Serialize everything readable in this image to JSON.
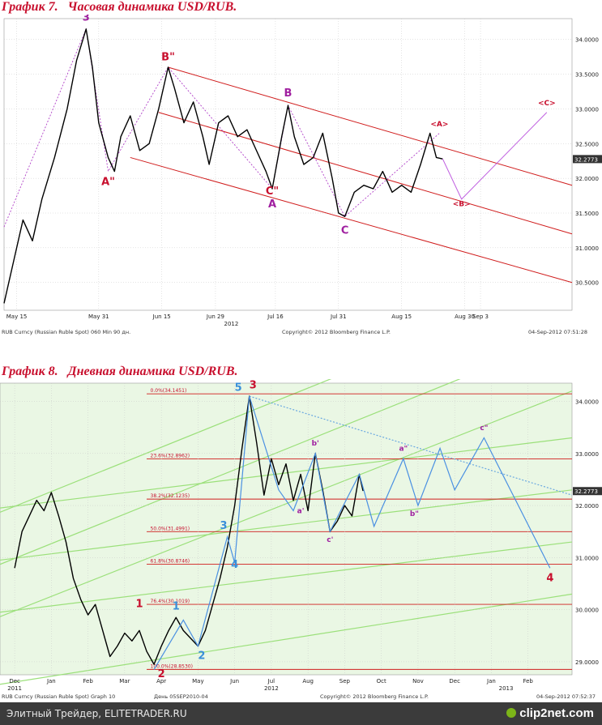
{
  "chart_data": [
    {
      "type": "line",
      "title": "График 7.   Часовая динамика USD/RUB.",
      "ylim": [
        30.1,
        34.3
      ],
      "x_ticks": [
        "May 15",
        "May 31",
        "Jun 15",
        "Jun 29",
        "Jul 16",
        "Jul 31",
        "Aug 15",
        "Aug 30",
        "Sep 3"
      ],
      "x_year": "2012",
      "y_ticks": [
        "34.0000",
        "33.5000",
        "33.0000",
        "32.5000",
        "32.0000",
        "31.5000",
        "31.0000",
        "30.5000"
      ],
      "last_price": "32.2773",
      "footer_left": "RUB Curncy (Russian Ruble Spot) 060 Min 90 дн.",
      "footer_center": "Copyright© 2012 Bloomberg Finance L.P.",
      "footer_right": "04-Sep-2012 07:51:28",
      "price_path": [
        {
          "x": 0.0,
          "y": 30.2
        },
        {
          "x": 1.5,
          "y": 30.8
        },
        {
          "x": 3.0,
          "y": 31.4
        },
        {
          "x": 4.5,
          "y": 31.1
        },
        {
          "x": 6.0,
          "y": 31.7
        },
        {
          "x": 8.0,
          "y": 32.3
        },
        {
          "x": 10.0,
          "y": 33.0
        },
        {
          "x": 11.5,
          "y": 33.7
        },
        {
          "x": 13.0,
          "y": 34.15
        },
        {
          "x": 14.0,
          "y": 33.6
        },
        {
          "x": 15.0,
          "y": 32.8
        },
        {
          "x": 16.5,
          "y": 32.3
        },
        {
          "x": 17.5,
          "y": 32.1
        },
        {
          "x": 18.5,
          "y": 32.6
        },
        {
          "x": 20.0,
          "y": 32.9
        },
        {
          "x": 21.5,
          "y": 32.4
        },
        {
          "x": 23.0,
          "y": 32.5
        },
        {
          "x": 24.5,
          "y": 33.0
        },
        {
          "x": 26.0,
          "y": 33.6
        },
        {
          "x": 27.0,
          "y": 33.3
        },
        {
          "x": 28.5,
          "y": 32.8
        },
        {
          "x": 30.0,
          "y": 33.1
        },
        {
          "x": 31.5,
          "y": 32.6
        },
        {
          "x": 32.5,
          "y": 32.2
        },
        {
          "x": 34.0,
          "y": 32.8
        },
        {
          "x": 35.5,
          "y": 32.9
        },
        {
          "x": 37.0,
          "y": 32.6
        },
        {
          "x": 38.5,
          "y": 32.7
        },
        {
          "x": 40.0,
          "y": 32.4
        },
        {
          "x": 41.5,
          "y": 32.1
        },
        {
          "x": 42.5,
          "y": 31.85
        },
        {
          "x": 44.0,
          "y": 32.6
        },
        {
          "x": 45.0,
          "y": 33.05
        },
        {
          "x": 46.0,
          "y": 32.6
        },
        {
          "x": 47.5,
          "y": 32.2
        },
        {
          "x": 49.0,
          "y": 32.3
        },
        {
          "x": 50.5,
          "y": 32.65
        },
        {
          "x": 52.0,
          "y": 32.0
        },
        {
          "x": 53.0,
          "y": 31.5
        },
        {
          "x": 54.0,
          "y": 31.45
        },
        {
          "x": 55.5,
          "y": 31.8
        },
        {
          "x": 57.0,
          "y": 31.9
        },
        {
          "x": 58.5,
          "y": 31.85
        },
        {
          "x": 60.0,
          "y": 32.1
        },
        {
          "x": 61.5,
          "y": 31.8
        },
        {
          "x": 63.0,
          "y": 31.9
        },
        {
          "x": 64.5,
          "y": 31.8
        },
        {
          "x": 66.0,
          "y": 32.2
        },
        {
          "x": 67.5,
          "y": 32.65
        },
        {
          "x": 68.5,
          "y": 32.3
        },
        {
          "x": 69.5,
          "y": 32.28
        }
      ],
      "annotations": [
        {
          "text": "3",
          "x": 13.0,
          "y": 34.27,
          "color": "#a020a0"
        },
        {
          "text": "B\"",
          "x": 26.0,
          "y": 33.7,
          "color": "#c8102e"
        },
        {
          "text": "A\"",
          "x": 16.5,
          "y": 31.9,
          "color": "#c8102e"
        },
        {
          "text": "C\"",
          "x": 42.5,
          "y": 31.77,
          "color": "#c8102e"
        },
        {
          "text": "B",
          "x": 45.0,
          "y": 33.18,
          "color": "#a020a0"
        },
        {
          "text": "A",
          "x": 42.5,
          "y": 31.58,
          "color": "#a020a0"
        },
        {
          "text": "C",
          "x": 54.0,
          "y": 31.2,
          "color": "#a020a0"
        },
        {
          "text": "<A>",
          "x": 69.0,
          "y": 32.75,
          "color": "#c8102e"
        },
        {
          "text": "<B>",
          "x": 72.5,
          "y": 31.6,
          "color": "#c8102e"
        },
        {
          "text": "<C>",
          "x": 86.0,
          "y": 33.05,
          "color": "#c8102e"
        }
      ],
      "projection_path": [
        {
          "x": 69.5,
          "y": 32.28
        },
        {
          "x": 72.5,
          "y": 31.7
        },
        {
          "x": 86.0,
          "y": 32.95
        }
      ],
      "waves_path": [
        {
          "x": 0.0,
          "y": 31.3
        },
        {
          "x": 13.0,
          "y": 34.15
        },
        {
          "x": 16.5,
          "y": 32.1
        },
        {
          "x": 26.0,
          "y": 33.6
        },
        {
          "x": 42.5,
          "y": 31.85
        },
        {
          "x": 45.0,
          "y": 33.05
        },
        {
          "x": 54.0,
          "y": 31.45
        },
        {
          "x": 69.0,
          "y": 32.65
        }
      ],
      "channel_lines": [
        {
          "from": {
            "x": 26.0,
            "y": 33.6
          },
          "to": {
            "x": 90.0,
            "y": 31.9
          }
        },
        {
          "from": {
            "x": 24.5,
            "y": 32.95
          },
          "to": {
            "x": 90.0,
            "y": 31.2
          }
        },
        {
          "from": {
            "x": 20.0,
            "y": 32.3
          },
          "to": {
            "x": 90.0,
            "y": 30.5
          }
        }
      ]
    },
    {
      "type": "line",
      "title": "График 8.   Дневная динамика USD/RUB.",
      "ylim": [
        28.75,
        34.35
      ],
      "x_ticks": [
        "Dec",
        "Jan",
        "Feb",
        "Mar",
        "Apr",
        "May",
        "Jun",
        "Jul",
        "Aug",
        "Sep",
        "Oct",
        "Nov",
        "Dec",
        "Jan",
        "Feb"
      ],
      "x_years": [
        "2011",
        "2012",
        "2013"
      ],
      "y_ticks": [
        "34.0000",
        "33.0000",
        "32.0000",
        "31.0000",
        "30.0000",
        "29.0000"
      ],
      "last_price": "32.2773",
      "footer_left": "RUB Curncy (Russian Ruble Spot) Graph 10",
      "footer_mid": "День 05SEP2010-04",
      "footer_center": "Copyright© 2012 Bloomberg Finance L.P.",
      "footer_right": "04-Sep-2012 07:52:37",
      "fib_levels": [
        {
          "label": "0.0%(34.1451)",
          "value": 34.1451
        },
        {
          "label": "23.6%(32.8962)",
          "value": 32.8962
        },
        {
          "label": "38.2%(32.1235)",
          "value": 32.1235
        },
        {
          "label": "50.0%(31.4991)",
          "value": 31.4991
        },
        {
          "label": "61.8%(30.8746)",
          "value": 30.8746
        },
        {
          "label": "76.4%(30.1019)",
          "value": 30.1019
        },
        {
          "label": "100.0%(28.8530)",
          "value": 28.853
        }
      ],
      "price_path": [
        {
          "x": 0.0,
          "y": 30.8
        },
        {
          "x": 1.0,
          "y": 31.5
        },
        {
          "x": 2.0,
          "y": 31.8
        },
        {
          "x": 3.0,
          "y": 32.1
        },
        {
          "x": 4.0,
          "y": 31.9
        },
        {
          "x": 5.0,
          "y": 32.25
        },
        {
          "x": 6.0,
          "y": 31.8
        },
        {
          "x": 7.0,
          "y": 31.3
        },
        {
          "x": 8.0,
          "y": 30.6
        },
        {
          "x": 9.0,
          "y": 30.2
        },
        {
          "x": 10.0,
          "y": 29.9
        },
        {
          "x": 11.0,
          "y": 30.1
        },
        {
          "x": 12.0,
          "y": 29.6
        },
        {
          "x": 13.0,
          "y": 29.1
        },
        {
          "x": 14.0,
          "y": 29.3
        },
        {
          "x": 15.0,
          "y": 29.55
        },
        {
          "x": 16.0,
          "y": 29.4
        },
        {
          "x": 17.0,
          "y": 29.6
        },
        {
          "x": 18.0,
          "y": 29.2
        },
        {
          "x": 19.0,
          "y": 28.95
        },
        {
          "x": 20.0,
          "y": 29.3
        },
        {
          "x": 21.0,
          "y": 29.6
        },
        {
          "x": 22.0,
          "y": 29.85
        },
        {
          "x": 23.0,
          "y": 29.6
        },
        {
          "x": 24.0,
          "y": 29.45
        },
        {
          "x": 25.0,
          "y": 29.3
        },
        {
          "x": 26.0,
          "y": 29.6
        },
        {
          "x": 27.0,
          "y": 30.1
        },
        {
          "x": 28.0,
          "y": 30.6
        },
        {
          "x": 29.0,
          "y": 31.2
        },
        {
          "x": 30.0,
          "y": 32.0
        },
        {
          "x": 31.0,
          "y": 33.1
        },
        {
          "x": 32.0,
          "y": 34.1
        },
        {
          "x": 33.0,
          "y": 33.2
        },
        {
          "x": 34.0,
          "y": 32.2
        },
        {
          "x": 35.0,
          "y": 32.9
        },
        {
          "x": 36.0,
          "y": 32.4
        },
        {
          "x": 37.0,
          "y": 32.8
        },
        {
          "x": 38.0,
          "y": 32.1
        },
        {
          "x": 39.0,
          "y": 32.6
        },
        {
          "x": 40.0,
          "y": 31.9
        },
        {
          "x": 41.0,
          "y": 33.0
        },
        {
          "x": 42.0,
          "y": 32.3
        },
        {
          "x": 43.0,
          "y": 31.5
        },
        {
          "x": 44.0,
          "y": 31.7
        },
        {
          "x": 45.0,
          "y": 32.0
        },
        {
          "x": 46.0,
          "y": 31.8
        },
        {
          "x": 47.0,
          "y": 32.6
        },
        {
          "x": 47.5,
          "y": 32.28
        }
      ],
      "wave_path": [
        {
          "x": 19.0,
          "y": 28.85
        },
        {
          "x": 23.0,
          "y": 29.8
        },
        {
          "x": 25.0,
          "y": 29.3
        },
        {
          "x": 29.0,
          "y": 31.4
        },
        {
          "x": 30.0,
          "y": 30.9
        },
        {
          "x": 32.0,
          "y": 34.1
        },
        {
          "x": 36.0,
          "y": 32.3
        },
        {
          "x": 38.0,
          "y": 31.9
        },
        {
          "x": 41.0,
          "y": 33.0
        },
        {
          "x": 43.0,
          "y": 31.5
        },
        {
          "x": 47.0,
          "y": 32.6
        },
        {
          "x": 49.0,
          "y": 31.6
        },
        {
          "x": 53.0,
          "y": 32.9
        },
        {
          "x": 55.0,
          "y": 32.0
        },
        {
          "x": 58.0,
          "y": 33.1
        },
        {
          "x": 60.0,
          "y": 32.3
        },
        {
          "x": 64.0,
          "y": 33.3
        },
        {
          "x": 73.0,
          "y": 30.8
        }
      ],
      "trend_line": [
        {
          "x": 32.0,
          "y": 34.1
        },
        {
          "x": 76.0,
          "y": 32.2
        }
      ],
      "green_channels": [
        {
          "from": {
            "x": -5.0,
            "y": 29.7
          },
          "to": {
            "x": 76.0,
            "y": 34.2
          }
        },
        {
          "from": {
            "x": -5.0,
            "y": 30.7
          },
          "to": {
            "x": 76.0,
            "y": 35.3
          }
        },
        {
          "from": {
            "x": -5.0,
            "y": 31.7
          },
          "to": {
            "x": 76.0,
            "y": 36.3
          }
        },
        {
          "from": {
            "x": -5.0,
            "y": 31.9
          },
          "to": {
            "x": 76.0,
            "y": 33.3
          }
        },
        {
          "from": {
            "x": -5.0,
            "y": 30.9
          },
          "to": {
            "x": 76.0,
            "y": 32.3
          }
        },
        {
          "from": {
            "x": -5.0,
            "y": 29.9
          },
          "to": {
            "x": 76.0,
            "y": 31.3
          }
        },
        {
          "from": {
            "x": -5.0,
            "y": 28.5
          },
          "to": {
            "x": 76.0,
            "y": 30.3
          }
        }
      ],
      "annotations": [
        {
          "text": "3",
          "x": 32.5,
          "y": 34.25,
          "color": "#c8102e"
        },
        {
          "text": "5",
          "x": 30.5,
          "y": 34.2,
          "color": "#3a8fd9"
        },
        {
          "text": "1",
          "x": 17.0,
          "y": 30.05,
          "color": "#c8102e"
        },
        {
          "text": "1",
          "x": 22.0,
          "y": 30.0,
          "color": "#3a8fd9"
        },
        {
          "text": "2",
          "x": 20.0,
          "y": 28.7,
          "color": "#c8102e"
        },
        {
          "text": "2",
          "x": 25.5,
          "y": 29.05,
          "color": "#3a8fd9"
        },
        {
          "text": "3",
          "x": 28.5,
          "y": 31.55,
          "color": "#3a8fd9"
        },
        {
          "text": "4",
          "x": 30.0,
          "y": 30.8,
          "color": "#3a8fd9"
        },
        {
          "text": "4",
          "x": 73.0,
          "y": 30.55,
          "color": "#c8102e"
        },
        {
          "text": "b'",
          "x": 41.0,
          "y": 33.15,
          "color": "#a020a0"
        },
        {
          "text": "a'",
          "x": 39.0,
          "y": 31.85,
          "color": "#a020a0"
        },
        {
          "text": "c'",
          "x": 43.0,
          "y": 31.3,
          "color": "#a020a0"
        },
        {
          "text": "a\"",
          "x": 53.0,
          "y": 33.05,
          "color": "#a020a0"
        },
        {
          "text": "b\"",
          "x": 54.5,
          "y": 31.8,
          "color": "#a020a0"
        },
        {
          "text": "c\"",
          "x": 64.0,
          "y": 33.45,
          "color": "#a020a0"
        }
      ]
    }
  ],
  "footer": {
    "source": "Элитный Трейдер, ELITETRADER.RU",
    "logo": "clip2net.com"
  }
}
